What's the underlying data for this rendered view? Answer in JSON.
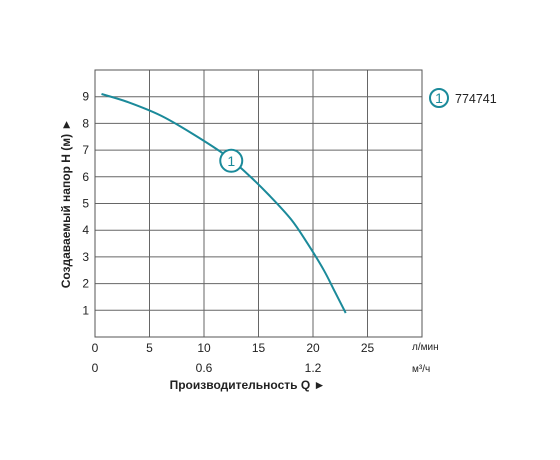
{
  "chart_data": {
    "type": "line",
    "ylabel": "Создаваемый напор Н (м) ►",
    "xlabel": "Производительность Q ►",
    "x_unit": "л/мин",
    "x2_unit": "м³/ч",
    "xlim": [
      0,
      30
    ],
    "ylim": [
      0,
      10
    ],
    "x_ticks": [
      "0",
      "5",
      "10",
      "15",
      "20",
      "25"
    ],
    "x_tick_values": [
      0,
      5,
      10,
      15,
      20,
      25
    ],
    "x2_ticks": [
      "0",
      "0.6",
      "1.2"
    ],
    "x2_tick_values": [
      0,
      10,
      20
    ],
    "y_ticks": [
      "1",
      "2",
      "3",
      "4",
      "5",
      "6",
      "7",
      "8",
      "9"
    ],
    "y_tick_values": [
      1,
      2,
      3,
      4,
      5,
      6,
      7,
      8,
      9
    ],
    "grid": true,
    "series": [
      {
        "name": "774741",
        "marker_label": "1",
        "color": "#1b8a9a",
        "x": [
          0.6,
          3,
          6,
          9,
          12,
          14,
          16,
          18,
          19.5,
          21,
          22,
          23
        ],
        "y": [
          9.1,
          8.8,
          8.3,
          7.6,
          6.8,
          6.1,
          5.3,
          4.4,
          3.5,
          2.5,
          1.7,
          0.9
        ]
      }
    ],
    "legend_position": "top-right"
  }
}
